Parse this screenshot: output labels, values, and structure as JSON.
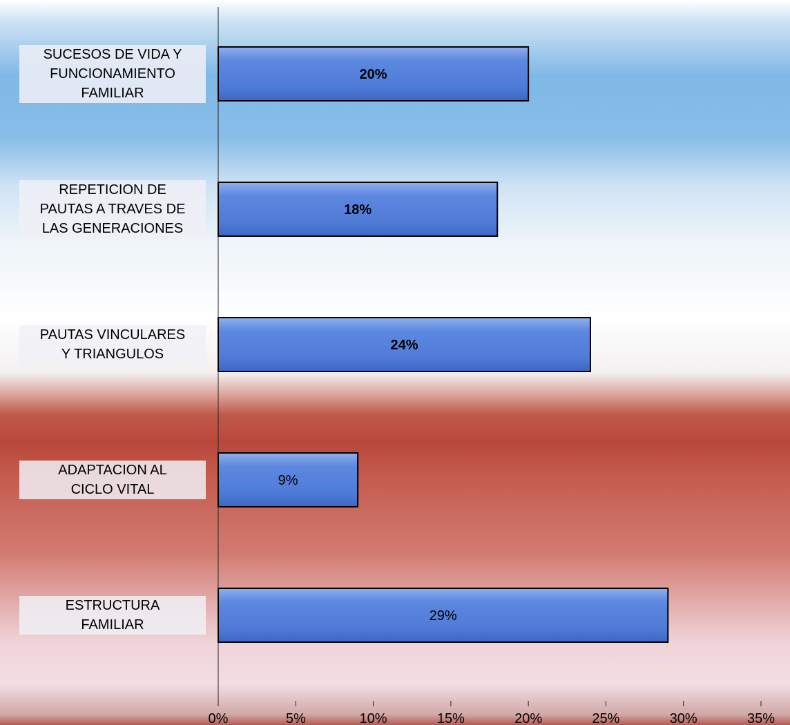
{
  "chart_data": {
    "type": "bar",
    "orientation": "horizontal",
    "categories": [
      "SUCESOS DE VIDA Y\nFUNCIONAMIENTO\nFAMILIAR",
      "REPETICION DE\nPAUTAS A TRAVES DE\nLAS GENERACIONES",
      "PAUTAS VINCULARES\nY TRIANGULOS",
      "ADAPTACION AL\nCICLO VITAL",
      "ESTRUCTURA\nFAMILIAR"
    ],
    "values": [
      20,
      18,
      24,
      9,
      29
    ],
    "data_labels": [
      "20%",
      "18%",
      "24%",
      "9%",
      "29%"
    ],
    "data_label_bold": [
      true,
      true,
      true,
      false,
      false
    ],
    "xlim": [
      0,
      35
    ],
    "xticks": [
      "0%",
      "5%",
      "10%",
      "15%",
      "20%",
      "25%",
      "30%",
      "35%"
    ],
    "bar_color": "#5b86de",
    "bar_edge_color": "#000000",
    "grid": false,
    "legend": "none"
  }
}
